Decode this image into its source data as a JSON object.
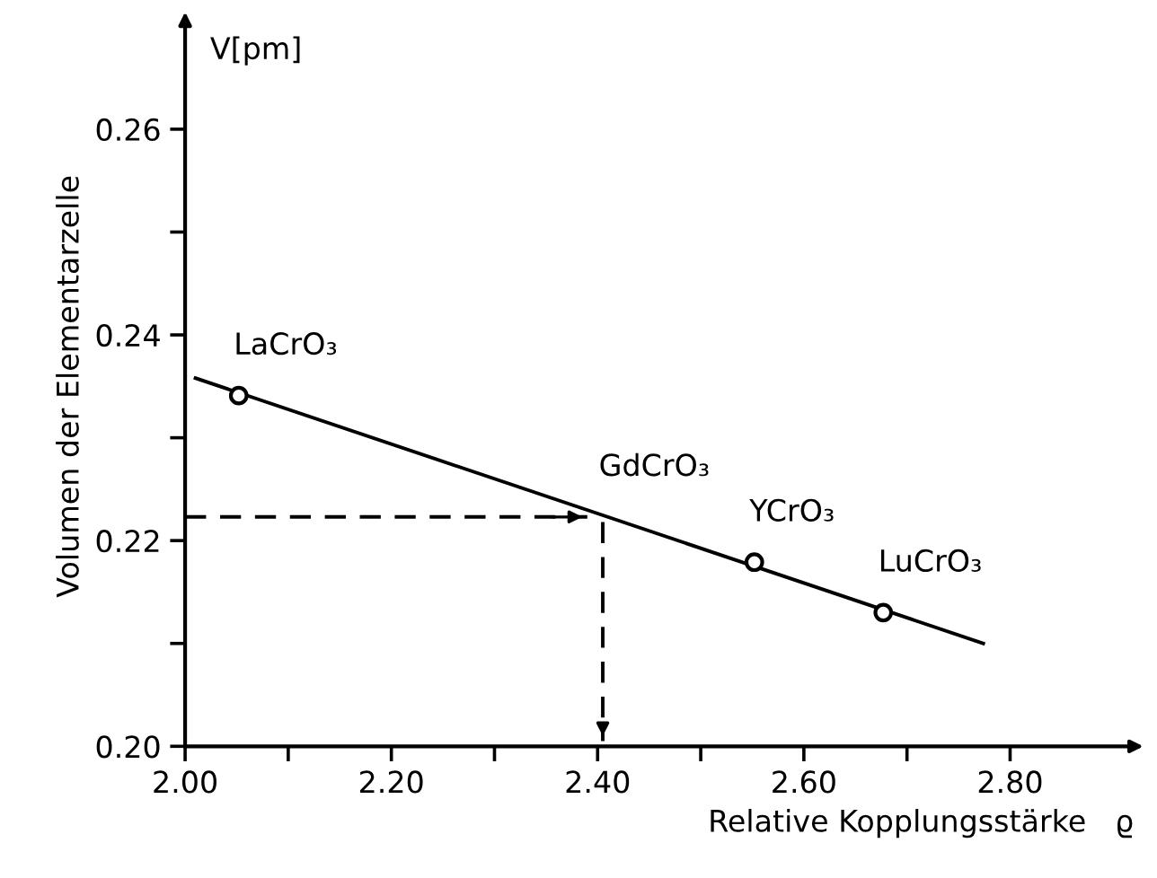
{
  "chart_data": {
    "type": "scatter",
    "xlabel": "Relative Kopplungsstärke   ϱ",
    "ylabel": "Volumen der Elementarzelle",
    "xlim": [
      2.0,
      2.92
    ],
    "ylim": [
      0.2,
      0.27
    ],
    "xticks": [
      {
        "value": 2.0,
        "label": "2.00"
      },
      {
        "value": 2.1,
        "label": null
      },
      {
        "value": 2.2,
        "label": "2.20"
      },
      {
        "value": 2.3,
        "label": null
      },
      {
        "value": 2.4,
        "label": "2.40"
      },
      {
        "value": 2.5,
        "label": null
      },
      {
        "value": 2.6,
        "label": "2.60"
      },
      {
        "value": 2.7,
        "label": null
      },
      {
        "value": 2.8,
        "label": "2.80"
      }
    ],
    "yticks": [
      {
        "value": 0.2,
        "label": "0.20"
      },
      {
        "value": 0.21,
        "label": null
      },
      0.22,
      {
        "value": 0.23,
        "label": null
      },
      0.24,
      {
        "value": 0.25,
        "label": null
      },
      0.26
    ],
    "grid": false,
    "series": [
      {
        "color": "#000000",
        "marker": "circle",
        "x": [
          2.052,
          2.552,
          2.677
        ],
        "values": [
          0.2341,
          0.2179,
          0.213
        ]
      },
      {
        "type": "line",
        "color": "#000000",
        "line_style": "solid",
        "marker": "none",
        "x": [
          2.01,
          2.774
        ],
        "values": [
          0.2358,
          0.21
        ]
      },
      {
        "type": "line",
        "color": "#000000",
        "line_style": "dashed",
        "marker": "none",
        "x": [
          2.0,
          2.39
        ],
        "values": [
          0.2223,
          0.2223
        ]
      },
      {
        "type": "line",
        "color": "#000000",
        "line_style": "dashed",
        "marker": "none",
        "x": [
          2.405,
          2.405
        ],
        "values": [
          0.2218,
          0.2005
        ]
      }
    ],
    "annotations": [
      "V[pm]",
      {
        "text": "LaCrO₃",
        "x": 2.052,
        "y": 0.2341
      },
      {
        "text": "GdCrO₃",
        "x": 2.406,
        "y": 0.2223
      },
      {
        "text": "YCrO₃",
        "x": 2.552,
        "y": 0.2179
      },
      {
        "text": "LuCrO₃",
        "x": 2.677,
        "y": 0.213
      }
    ]
  }
}
